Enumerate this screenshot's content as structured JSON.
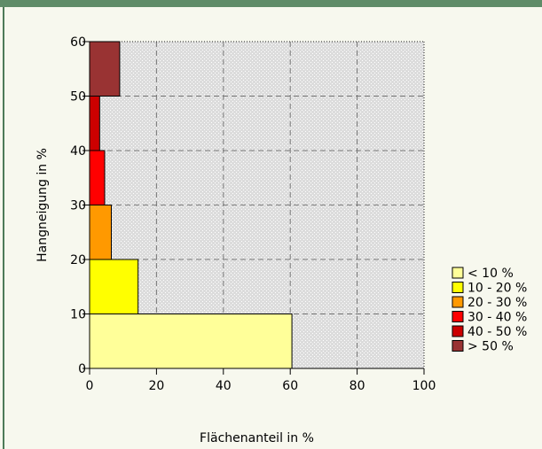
{
  "chart_data": {
    "type": "bar",
    "orientation": "horizontal",
    "title": "",
    "xlabel": "Flächenanteil in %",
    "ylabel": "Hangneigung in %",
    "xlim": [
      0,
      100
    ],
    "ylim": [
      0,
      60
    ],
    "x_ticks": [
      0,
      20,
      40,
      60,
      80,
      100
    ],
    "y_ticks": [
      0,
      10,
      20,
      30,
      40,
      50,
      60
    ],
    "grid": true,
    "legend_position": "right",
    "categories": [
      "< 10 %",
      "10 - 20 %",
      "20 - 30 %",
      "30 - 40 %",
      "40 - 50 %",
      "> 50 %"
    ],
    "bins": [
      [
        0,
        10
      ],
      [
        10,
        20
      ],
      [
        20,
        30
      ],
      [
        30,
        40
      ],
      [
        40,
        50
      ],
      [
        50,
        60
      ]
    ],
    "values": [
      60.5,
      14.5,
      6.5,
      4.5,
      3.0,
      9.0
    ],
    "colors": [
      "#ffff99",
      "#ffff00",
      "#ff9900",
      "#ff0000",
      "#cc0000",
      "#993333"
    ]
  }
}
